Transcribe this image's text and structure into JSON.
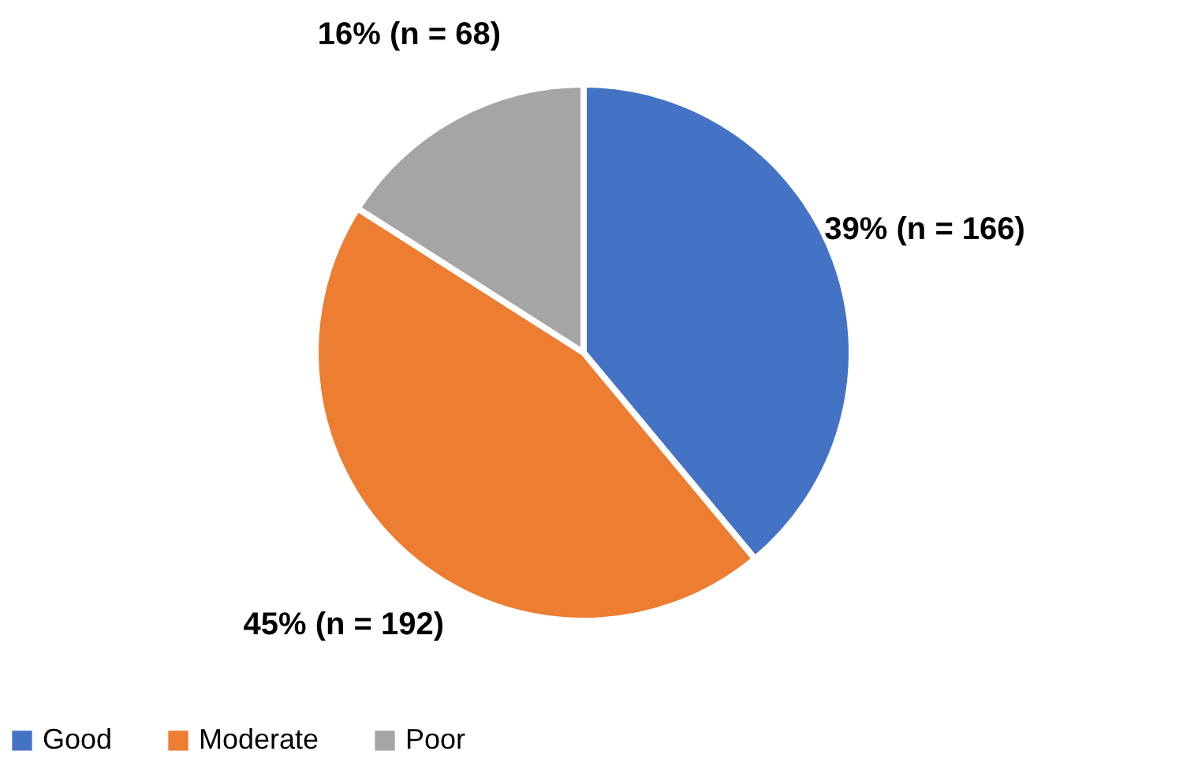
{
  "chart_data": {
    "type": "pie",
    "categories": [
      "Good",
      "Moderate",
      "Poor"
    ],
    "values": [
      166,
      192,
      68
    ],
    "value_labels": [
      "39% (n = 166)",
      "45% (n = 192)",
      "16% (n = 68)"
    ],
    "colors": [
      "#4472c4",
      "#ed7d31",
      "#a5a5a5"
    ],
    "legend": "bottom"
  }
}
